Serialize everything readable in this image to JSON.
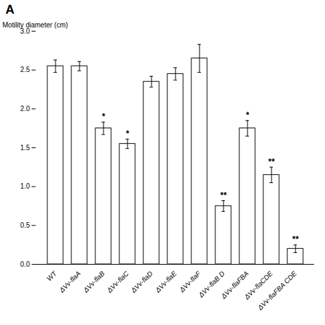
{
  "chart_data": {
    "type": "bar",
    "title": "A",
    "categories": [
      "WT",
      "ΔVv-flaA",
      "ΔVv-flaB",
      "ΔVv-flaC",
      "ΔVv-flaD",
      "ΔVv-flaE",
      "ΔVv-flaF",
      "ΔVv-flaB D",
      "ΔVv-flaFBA",
      "ΔVv-flaCDE",
      "ΔVv-flaFBA CDE"
    ],
    "values": [
      2.55,
      2.55,
      1.75,
      1.55,
      2.35,
      2.45,
      2.65,
      0.75,
      1.75,
      1.15,
      0.2
    ],
    "errors": [
      0.08,
      0.06,
      0.08,
      0.06,
      0.07,
      0.08,
      0.18,
      0.07,
      0.1,
      0.1,
      0.05
    ],
    "annotations": [
      {
        "category": "ΔVv-flaB",
        "text": "*"
      },
      {
        "category": "ΔVv-flaC",
        "text": "*"
      },
      {
        "category": "ΔVv-flaB D",
        "text": "**"
      },
      {
        "category": "ΔVv-flaFBA",
        "text": "*"
      },
      {
        "category": "ΔVv-flaCDE",
        "text": "**"
      },
      {
        "category": "ΔVv-flaFBA CDE",
        "text": "**"
      }
    ],
    "ylabel": "Motility diameter (cm)",
    "color": "#ffffff",
    "ylim": [
      0,
      3.0
    ],
    "yticks": [
      {
        "value": 0,
        "label": "0.0"
      },
      0.5,
      {
        "value": 1,
        "label": "1.0"
      },
      1.5,
      {
        "value": 2,
        "label": "2.0"
      },
      2.5,
      {
        "value": 3,
        "label": "3.0"
      }
    ]
  }
}
